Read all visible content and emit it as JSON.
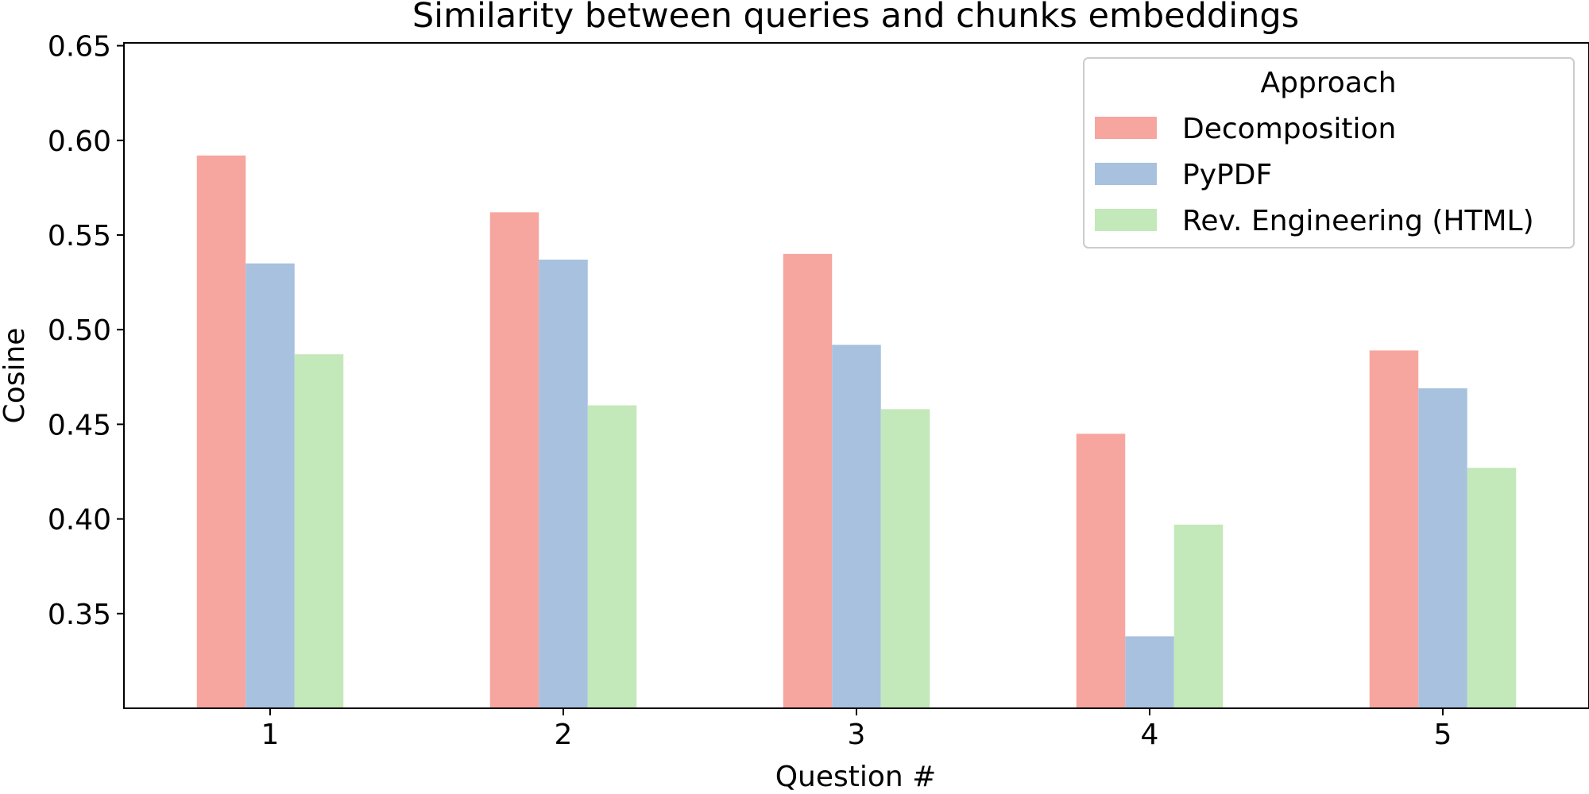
{
  "chart_data": {
    "type": "bar",
    "title": "Similarity between queries and chunks embeddings",
    "xlabel": "Question #",
    "ylabel": "Cosine",
    "categories": [
      "1",
      "2",
      "3",
      "4",
      "5"
    ],
    "ylim": [
      0.3,
      0.6515
    ],
    "yticks": [
      0.35,
      0.4,
      0.45,
      0.5,
      0.55,
      0.6,
      0.65
    ],
    "ytick_labels": [
      "0.35",
      "0.40",
      "0.45",
      "0.50",
      "0.55",
      "0.60",
      "0.65"
    ],
    "grid": false,
    "legend": {
      "title": "Approach",
      "position": "top-right"
    },
    "series": [
      {
        "name": "Decomposition",
        "color": "#f7a59f",
        "values": [
          0.592,
          0.562,
          0.54,
          0.445,
          0.489
        ]
      },
      {
        "name": "PyPDF",
        "color": "#a7c1df",
        "values": [
          0.535,
          0.537,
          0.492,
          0.338,
          0.469
        ]
      },
      {
        "name": "Rev. Engineering (HTML)",
        "color": "#c3e8b9",
        "values": [
          0.487,
          0.46,
          0.458,
          0.397,
          0.427
        ]
      }
    ]
  }
}
